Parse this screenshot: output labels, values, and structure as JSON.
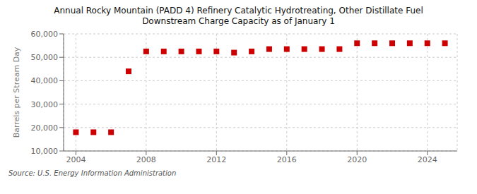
{
  "chart_data": {
    "type": "scatter",
    "title": "Annual Rocky Mountain (PADD 4) Refinery Catalytic Hydrotreating, Other Distillate Fuel\nDownstream Charge Capacity as of January 1",
    "y_label": "Barrels per Stream Day",
    "annotations": [
      "Source: U.S. Energy Information Administration"
    ],
    "x": [
      2004,
      2005,
      2006,
      2007,
      2008,
      2009,
      2010,
      2011,
      2012,
      2013,
      2014,
      2015,
      2016,
      2017,
      2018,
      2019,
      2020,
      2021,
      2022,
      2023,
      2024,
      2025
    ],
    "values": [
      18000,
      18000,
      18000,
      44000,
      52500,
      52500,
      52500,
      52500,
      52500,
      52000,
      52500,
      53500,
      53500,
      53500,
      53500,
      53500,
      56000,
      56000,
      56000,
      56000,
      56000,
      56000
    ],
    "color": "#cc0000",
    "marker": "square",
    "xlim": [
      2003.3,
      2025.7
    ],
    "xticks": [
      2004,
      2008,
      2012,
      2016,
      2020,
      2024
    ],
    "ylim": [
      10000,
      60000
    ],
    "yticks": [
      {
        "value": 10000,
        "label": "10,000"
      },
      {
        "value": 20000,
        "label": "20,000"
      },
      {
        "value": 30000,
        "label": "30,000"
      },
      {
        "value": 40000,
        "label": "40,000"
      },
      {
        "value": 50000,
        "label": "50,000"
      },
      {
        "value": 60000,
        "label": "60,000"
      }
    ],
    "grid": true
  }
}
